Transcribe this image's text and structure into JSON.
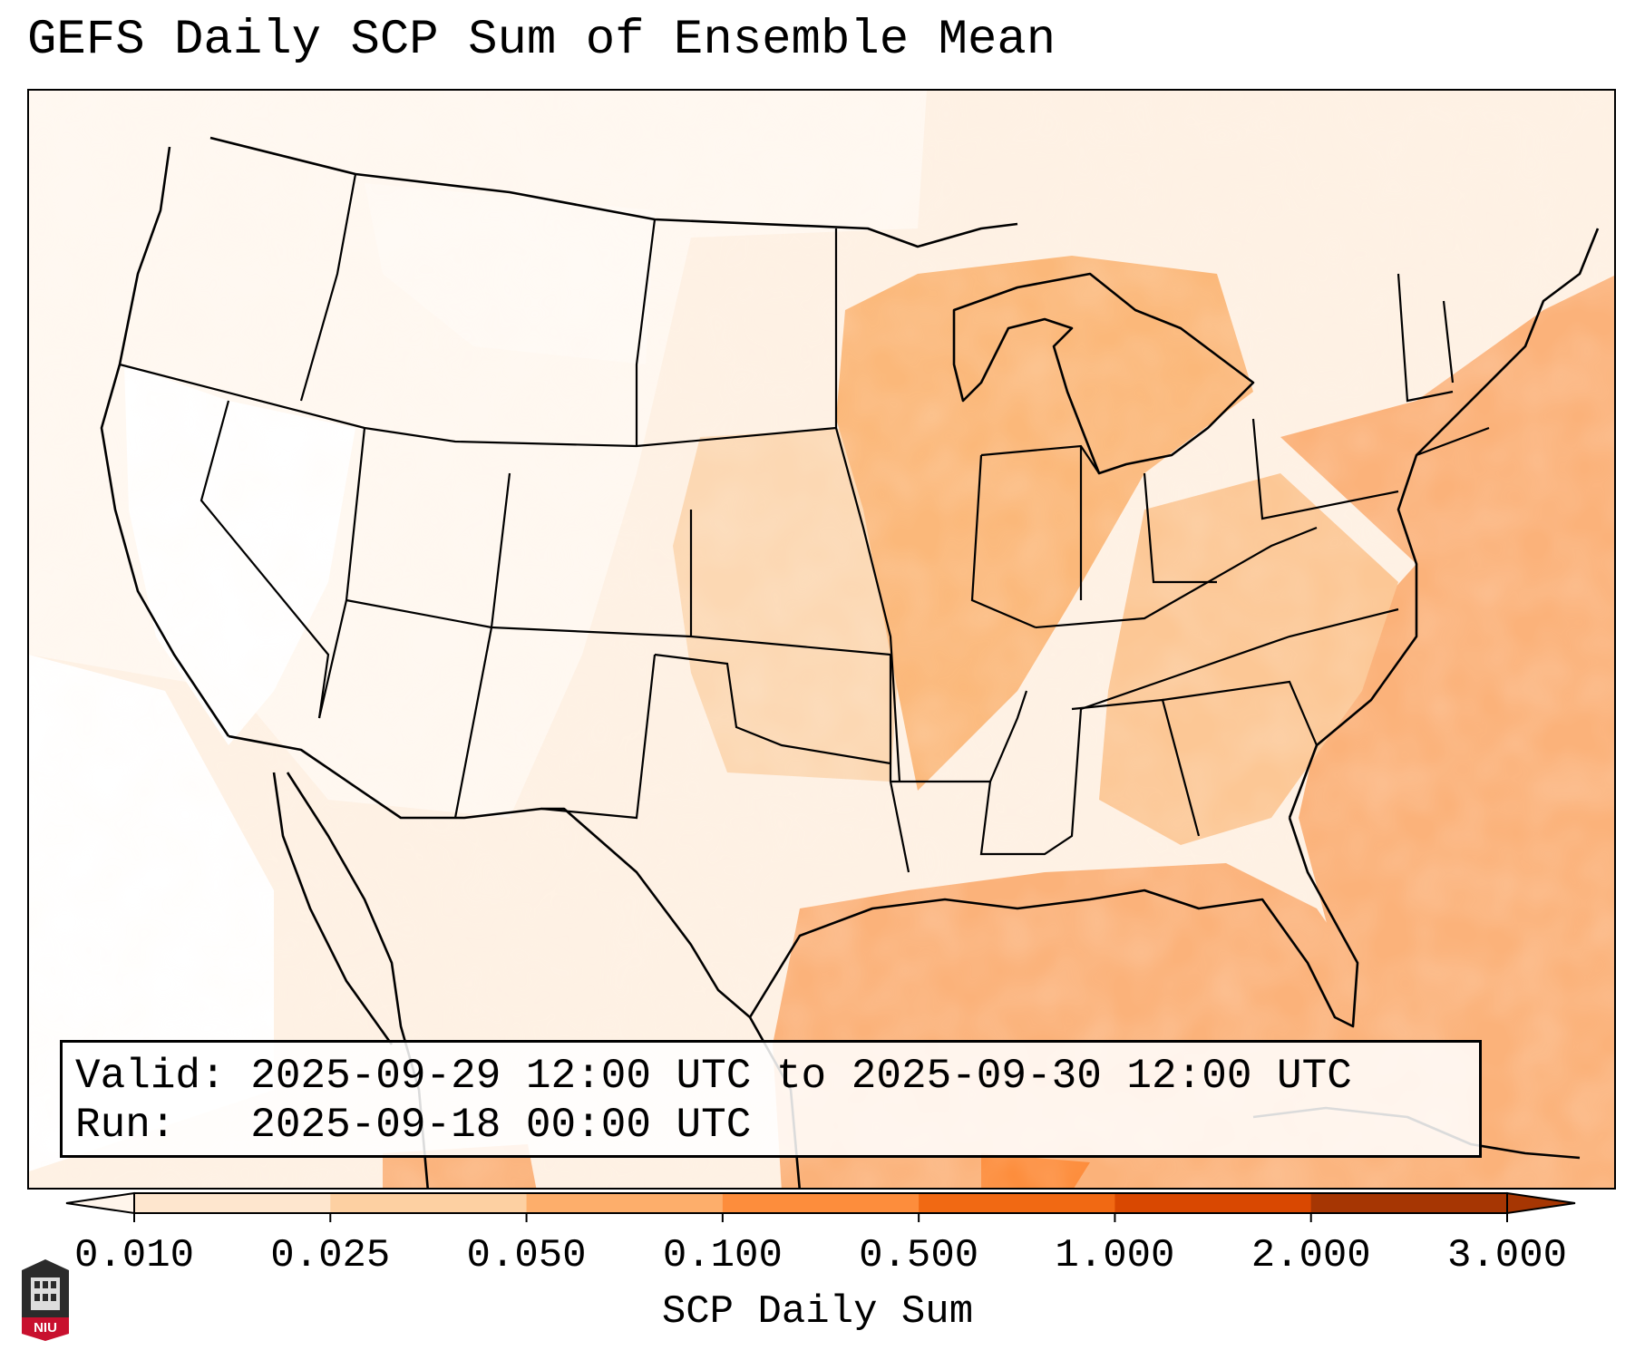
{
  "title": "GEFS Daily SCP Sum of Ensemble Mean",
  "info": {
    "valid_label": "Valid:",
    "valid_value": "2025-09-29 12:00 UTC to 2025-09-30 12:00 UTC",
    "run_label": "Run:",
    "run_value": "2025-09-18 00:00 UTC"
  },
  "colorbar": {
    "label": "SCP Daily Sum",
    "ticks": [
      "0.010",
      "0.025",
      "0.050",
      "0.100",
      "0.500",
      "1.000",
      "2.000",
      "3.000"
    ],
    "colors": [
      "#fff5eb",
      "#fee6ce",
      "#fdd0a2",
      "#fdae6b",
      "#fd8d3c",
      "#f16913",
      "#d94801",
      "#a63603"
    ],
    "extend": "both"
  },
  "logo": {
    "text": "NIU"
  }
}
